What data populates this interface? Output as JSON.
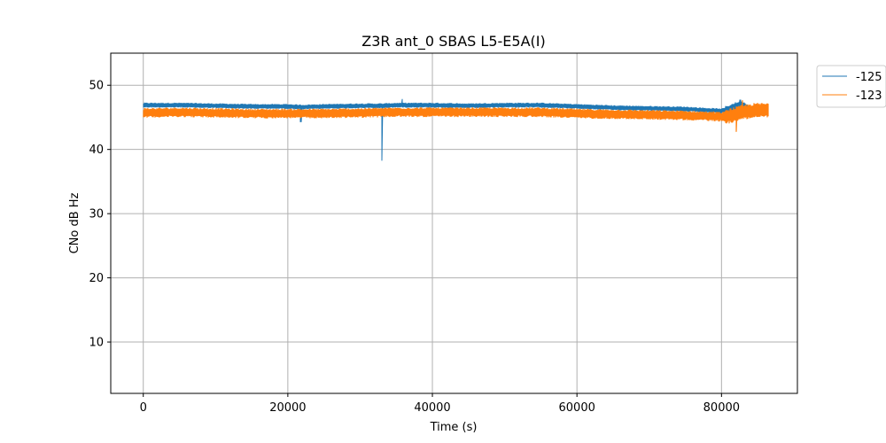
{
  "chart_data": {
    "type": "line",
    "title": "Z3R ant_0 SBAS L5-E5A(I)",
    "xlabel": "Time (s)",
    "ylabel": "CNo dB Hz",
    "xlim": [
      -4500,
      90500
    ],
    "ylim": [
      2,
      55
    ],
    "xticks": [
      0,
      20000,
      40000,
      60000,
      80000
    ],
    "xtick_labels": [
      "0",
      "20000",
      "40000",
      "60000",
      "80000"
    ],
    "yticks": [
      10,
      20,
      30,
      40,
      50
    ],
    "ytick_labels": [
      "10",
      "20",
      "30",
      "40",
      "50"
    ],
    "grid": true,
    "legend_position": "outside-top-right",
    "series": [
      {
        "name": "-125",
        "color": "#1f77b4",
        "x": [
          0,
          5000,
          10000,
          15000,
          20000,
          22000,
          25000,
          30000,
          33000,
          35000,
          40000,
          45000,
          50000,
          55000,
          60000,
          65000,
          70000,
          75000,
          78000,
          80000,
          81000,
          82000,
          83000,
          84000,
          85000,
          86400
        ],
        "values": [
          46.9,
          46.9,
          46.8,
          46.7,
          46.7,
          46.6,
          46.7,
          46.8,
          46.8,
          46.9,
          46.9,
          46.8,
          46.9,
          46.9,
          46.7,
          46.5,
          46.4,
          46.3,
          46.1,
          46.0,
          46.3,
          46.8,
          46.9,
          46.2,
          45.9,
          46.3
        ],
        "events": [
          {
            "x": 33000,
            "min": 38.3
          },
          {
            "x": 35800,
            "max": 47.8
          },
          {
            "x": 21800,
            "min": 44.3
          },
          {
            "x": 82600,
            "max": 47.7
          }
        ],
        "noise": 0.35
      },
      {
        "name": "-123",
        "color": "#ff7f0e",
        "x": [
          0,
          5000,
          10000,
          15000,
          20000,
          25000,
          30000,
          35000,
          40000,
          45000,
          50000,
          55000,
          60000,
          65000,
          70000,
          75000,
          78000,
          80000,
          81000,
          82000,
          83000,
          84000,
          85000,
          86400
        ],
        "values": [
          45.7,
          45.8,
          45.7,
          45.6,
          45.6,
          45.6,
          45.7,
          45.8,
          45.8,
          45.8,
          45.8,
          45.8,
          45.6,
          45.5,
          45.4,
          45.3,
          45.2,
          45.1,
          45.2,
          45.5,
          45.8,
          46.0,
          46.1,
          46.1
        ],
        "events": [
          {
            "x": 82000,
            "min": 42.8
          },
          {
            "x": 82900,
            "max": 47.6
          }
        ],
        "noise": 0.7
      }
    ]
  }
}
